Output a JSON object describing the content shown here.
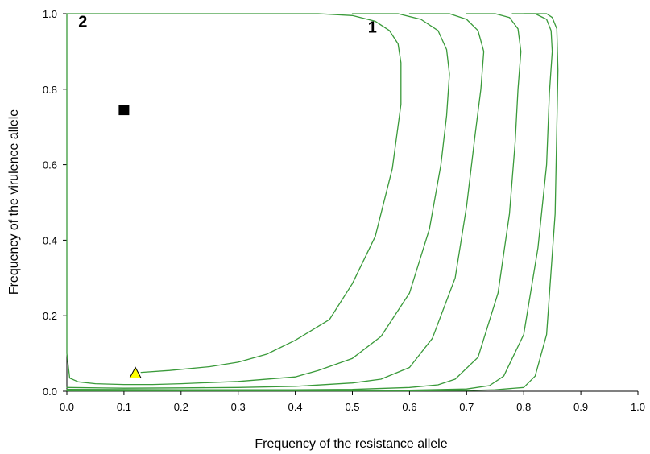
{
  "chart_data": {
    "type": "line",
    "title": "",
    "xlabel": "Frequency of the resistance allele",
    "ylabel": "Frequency of the virulence allele",
    "xlim": [
      0.0,
      1.0
    ],
    "ylim": [
      0.0,
      1.0
    ],
    "x_ticks": [
      "0.0",
      "0.1",
      "0.2",
      "0.3",
      "0.4",
      "0.5",
      "0.6",
      "0.7",
      "0.8",
      "0.9",
      "1.0"
    ],
    "y_ticks": [
      "0.0",
      "0.2",
      "0.4",
      "0.6",
      "0.8",
      "1.0"
    ],
    "grid": false,
    "legend": "none",
    "line_color": "#3a9a3a",
    "series": [
      {
        "points": [
          [
            0.13,
            0.05
          ],
          [
            0.18,
            0.055
          ],
          [
            0.25,
            0.065
          ],
          [
            0.3,
            0.077
          ],
          [
            0.35,
            0.098
          ],
          [
            0.4,
            0.135
          ],
          [
            0.46,
            0.19
          ],
          [
            0.5,
            0.285
          ],
          [
            0.54,
            0.41
          ],
          [
            0.57,
            0.59
          ],
          [
            0.585,
            0.76
          ],
          [
            0.585,
            0.87
          ],
          [
            0.58,
            0.92
          ],
          [
            0.565,
            0.955
          ],
          [
            0.54,
            0.98
          ],
          [
            0.5,
            0.995
          ],
          [
            0.44,
            1.0
          ],
          [
            0.3,
            1.0
          ],
          [
            0.1,
            1.0
          ],
          [
            0.0,
            1.0
          ],
          [
            0.0,
            0.7
          ],
          [
            0.0,
            0.3
          ],
          [
            0.0,
            0.1
          ],
          [
            0.005,
            0.035
          ],
          [
            0.02,
            0.025
          ],
          [
            0.05,
            0.02
          ],
          [
            0.1,
            0.018
          ],
          [
            0.15,
            0.018
          ],
          [
            0.2,
            0.02
          ],
          [
            0.3,
            0.026
          ],
          [
            0.4,
            0.038
          ],
          [
            0.44,
            0.055
          ],
          [
            0.5,
            0.087
          ],
          [
            0.55,
            0.145
          ],
          [
            0.6,
            0.26
          ],
          [
            0.635,
            0.43
          ],
          [
            0.655,
            0.6
          ],
          [
            0.665,
            0.73
          ],
          [
            0.67,
            0.84
          ],
          [
            0.665,
            0.905
          ],
          [
            0.65,
            0.955
          ],
          [
            0.62,
            0.985
          ],
          [
            0.58,
            1.0
          ],
          [
            0.5,
            1.0
          ]
        ]
      },
      {
        "points": [
          [
            0.0,
            0.01
          ],
          [
            0.1,
            0.008
          ],
          [
            0.2,
            0.009
          ],
          [
            0.3,
            0.01
          ],
          [
            0.4,
            0.013
          ],
          [
            0.5,
            0.022
          ],
          [
            0.55,
            0.032
          ],
          [
            0.6,
            0.063
          ],
          [
            0.64,
            0.14
          ],
          [
            0.68,
            0.3
          ],
          [
            0.7,
            0.49
          ],
          [
            0.715,
            0.68
          ],
          [
            0.725,
            0.8
          ],
          [
            0.73,
            0.9
          ],
          [
            0.72,
            0.955
          ],
          [
            0.7,
            0.985
          ],
          [
            0.67,
            1.0
          ],
          [
            0.6,
            1.0
          ]
        ]
      },
      {
        "points": [
          [
            0.0,
            0.005
          ],
          [
            0.2,
            0.004
          ],
          [
            0.4,
            0.004
          ],
          [
            0.5,
            0.005
          ],
          [
            0.6,
            0.01
          ],
          [
            0.65,
            0.017
          ],
          [
            0.68,
            0.032
          ],
          [
            0.72,
            0.09
          ],
          [
            0.755,
            0.26
          ],
          [
            0.775,
            0.47
          ],
          [
            0.785,
            0.66
          ],
          [
            0.79,
            0.8
          ],
          [
            0.795,
            0.9
          ],
          [
            0.79,
            0.96
          ],
          [
            0.775,
            0.99
          ],
          [
            0.75,
            1.0
          ],
          [
            0.7,
            1.0
          ]
        ]
      },
      {
        "points": [
          [
            0.0,
            0.002
          ],
          [
            0.3,
            0.002
          ],
          [
            0.5,
            0.002
          ],
          [
            0.6,
            0.003
          ],
          [
            0.7,
            0.006
          ],
          [
            0.74,
            0.015
          ],
          [
            0.765,
            0.04
          ],
          [
            0.8,
            0.15
          ],
          [
            0.825,
            0.38
          ],
          [
            0.84,
            0.6
          ],
          [
            0.845,
            0.79
          ],
          [
            0.85,
            0.9
          ],
          [
            0.848,
            0.955
          ],
          [
            0.84,
            0.985
          ],
          [
            0.82,
            1.0
          ],
          [
            0.78,
            1.0
          ]
        ]
      },
      {
        "points": [
          [
            0.0,
            0.001
          ],
          [
            0.4,
            0.001
          ],
          [
            0.6,
            0.001
          ],
          [
            0.7,
            0.002
          ],
          [
            0.75,
            0.004
          ],
          [
            0.8,
            0.01
          ],
          [
            0.82,
            0.04
          ],
          [
            0.84,
            0.15
          ],
          [
            0.855,
            0.47
          ],
          [
            0.86,
            0.85
          ],
          [
            0.858,
            0.96
          ],
          [
            0.85,
            0.99
          ],
          [
            0.84,
            1.0
          ],
          [
            0.8,
            1.0
          ]
        ]
      }
    ],
    "markers": [
      {
        "shape": "square",
        "x": 0.1,
        "y": 0.745,
        "color": "#000000"
      },
      {
        "shape": "triangle",
        "x": 0.12,
        "y": 0.048,
        "color": "#ffff00"
      }
    ],
    "annotations": [
      {
        "text": "1",
        "x": 0.535,
        "y": 0.965
      },
      {
        "text": "2",
        "x": 0.028,
        "y": 0.98
      }
    ]
  }
}
